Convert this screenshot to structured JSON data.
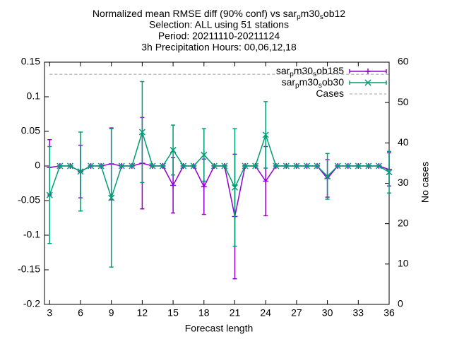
{
  "chart_data": {
    "type": "line",
    "title_lines": [
      [
        "Normalized mean RMSE diff (90% conf) vs sar",
        "p",
        "m30",
        "s",
        "ob12"
      ],
      "Selection: ALL using    51 stations",
      "Period: 20211110-20211124",
      "3h Precipitation   Hours: 00,06,12,18"
    ],
    "xlabel": "Forecast length",
    "y2label": "No cases",
    "x": [
      3,
      4,
      5,
      6,
      7,
      8,
      9,
      10,
      11,
      12,
      13,
      14,
      15,
      16,
      17,
      18,
      19,
      20,
      21,
      22,
      23,
      24,
      25,
      26,
      27,
      28,
      29,
      30,
      31,
      32,
      33,
      34,
      35,
      36
    ],
    "series": [
      {
        "name": [
          "sar",
          "p",
          "m30",
          "s",
          "ob185"
        ],
        "color": "#9400d3",
        "marker": "plus",
        "values": [
          -0.002,
          0,
          0,
          -0.008,
          0,
          0,
          0.003,
          0,
          0,
          0.004,
          0,
          0,
          -0.028,
          0,
          0,
          -0.03,
          0,
          0,
          -0.073,
          0,
          0,
          -0.022,
          0,
          0,
          0,
          0,
          0,
          -0.018,
          0,
          0,
          0,
          0,
          0,
          -0.005
        ],
        "errors": [
          0.04,
          0,
          0,
          0.038,
          0,
          0,
          0.052,
          0,
          0,
          0.066,
          0,
          0,
          0.04,
          0,
          0,
          0.04,
          0,
          0,
          0.09,
          0,
          0,
          0.05,
          0,
          0,
          0,
          0,
          0,
          0.027,
          0,
          0,
          0,
          0,
          0,
          0.024
        ]
      },
      {
        "name": [
          "sar",
          "p",
          "m30",
          "s",
          "ob30"
        ],
        "color": "#009e73",
        "marker": "cross",
        "values": [
          -0.042,
          0,
          0,
          -0.008,
          0,
          0,
          -0.046,
          0,
          0,
          0.049,
          0,
          0,
          0.023,
          0,
          0,
          0.016,
          0,
          0,
          -0.031,
          0,
          0,
          0.045,
          0,
          0,
          0,
          0,
          0,
          -0.015,
          0,
          0,
          0,
          0,
          0,
          -0.009
        ],
        "errors": [
          0.07,
          0,
          0,
          0.057,
          0,
          0,
          0.1,
          0,
          0,
          0.073,
          0,
          0,
          0.036,
          0,
          0,
          0.038,
          0,
          0,
          0.085,
          0,
          0,
          0.048,
          0,
          0,
          0,
          0,
          0,
          0.033,
          0,
          0,
          0,
          0,
          0,
          0.03
        ]
      },
      {
        "name": [
          "Cases"
        ],
        "color": "#a0a0a0",
        "axis": "y2",
        "dashed": true,
        "values": [
          57,
          57,
          57,
          57,
          57,
          57,
          57,
          57,
          57,
          57,
          57,
          57,
          57,
          57,
          57,
          57,
          57,
          57,
          57,
          57,
          57,
          57,
          57,
          57,
          57,
          57,
          57,
          57,
          57,
          57,
          57,
          57,
          57,
          57
        ]
      }
    ],
    "xlim": [
      2.5,
      36
    ],
    "xticks": [
      3,
      6,
      9,
      12,
      15,
      18,
      21,
      24,
      27,
      30,
      33,
      36
    ],
    "ylim": [
      -0.2,
      0.15
    ],
    "yticks": [
      -0.2,
      -0.15,
      -0.1,
      -0.05,
      0,
      0.05,
      0.1,
      0.15
    ],
    "y2lim": [
      0,
      60
    ],
    "y2ticks": [
      0,
      10,
      20,
      30,
      40,
      50,
      60
    ],
    "legend": "top-right"
  }
}
